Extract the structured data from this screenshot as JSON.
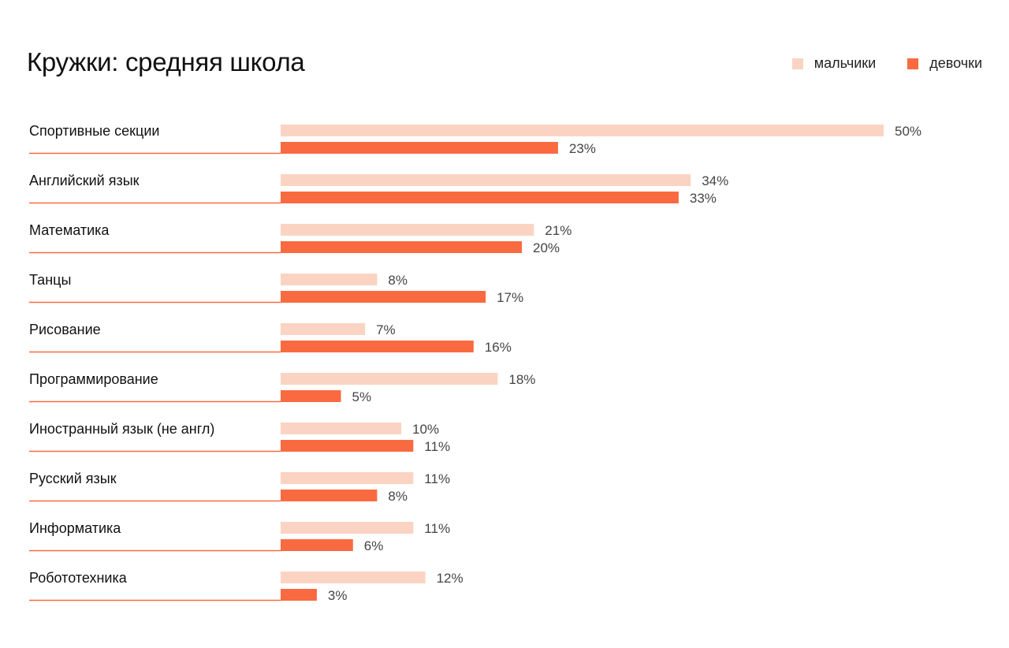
{
  "chart_data": {
    "type": "bar",
    "orientation": "horizontal",
    "title": "Кружки: средняя школа",
    "categories": [
      "Спортивные секции",
      "Английский язык",
      "Математика",
      "Танцы",
      "Рисование",
      "Программирование",
      "Иностранный язык (не англ)",
      "Русский язык",
      "Информатика",
      "Робототехника"
    ],
    "series": [
      {
        "name": "мальчики",
        "color": "#fbd3c2",
        "values": [
          50,
          34,
          21,
          8,
          7,
          18,
          10,
          11,
          11,
          12
        ],
        "labels": [
          "50%",
          "34%",
          "21%",
          "8%",
          "7%",
          "18%",
          "10%",
          "11%",
          "11%",
          "12%"
        ]
      },
      {
        "name": "девочки",
        "color": "#f96a40",
        "values": [
          23,
          33,
          20,
          17,
          16,
          5,
          11,
          8,
          6,
          3
        ],
        "labels": [
          "23%",
          "33%",
          "20%",
          "17%",
          "16%",
          "5%",
          "11%",
          "8%",
          "6%",
          "3%"
        ]
      }
    ],
    "unit": "%",
    "xlim": [
      0,
      50
    ],
    "grid": false,
    "legend_position": "top-right"
  }
}
